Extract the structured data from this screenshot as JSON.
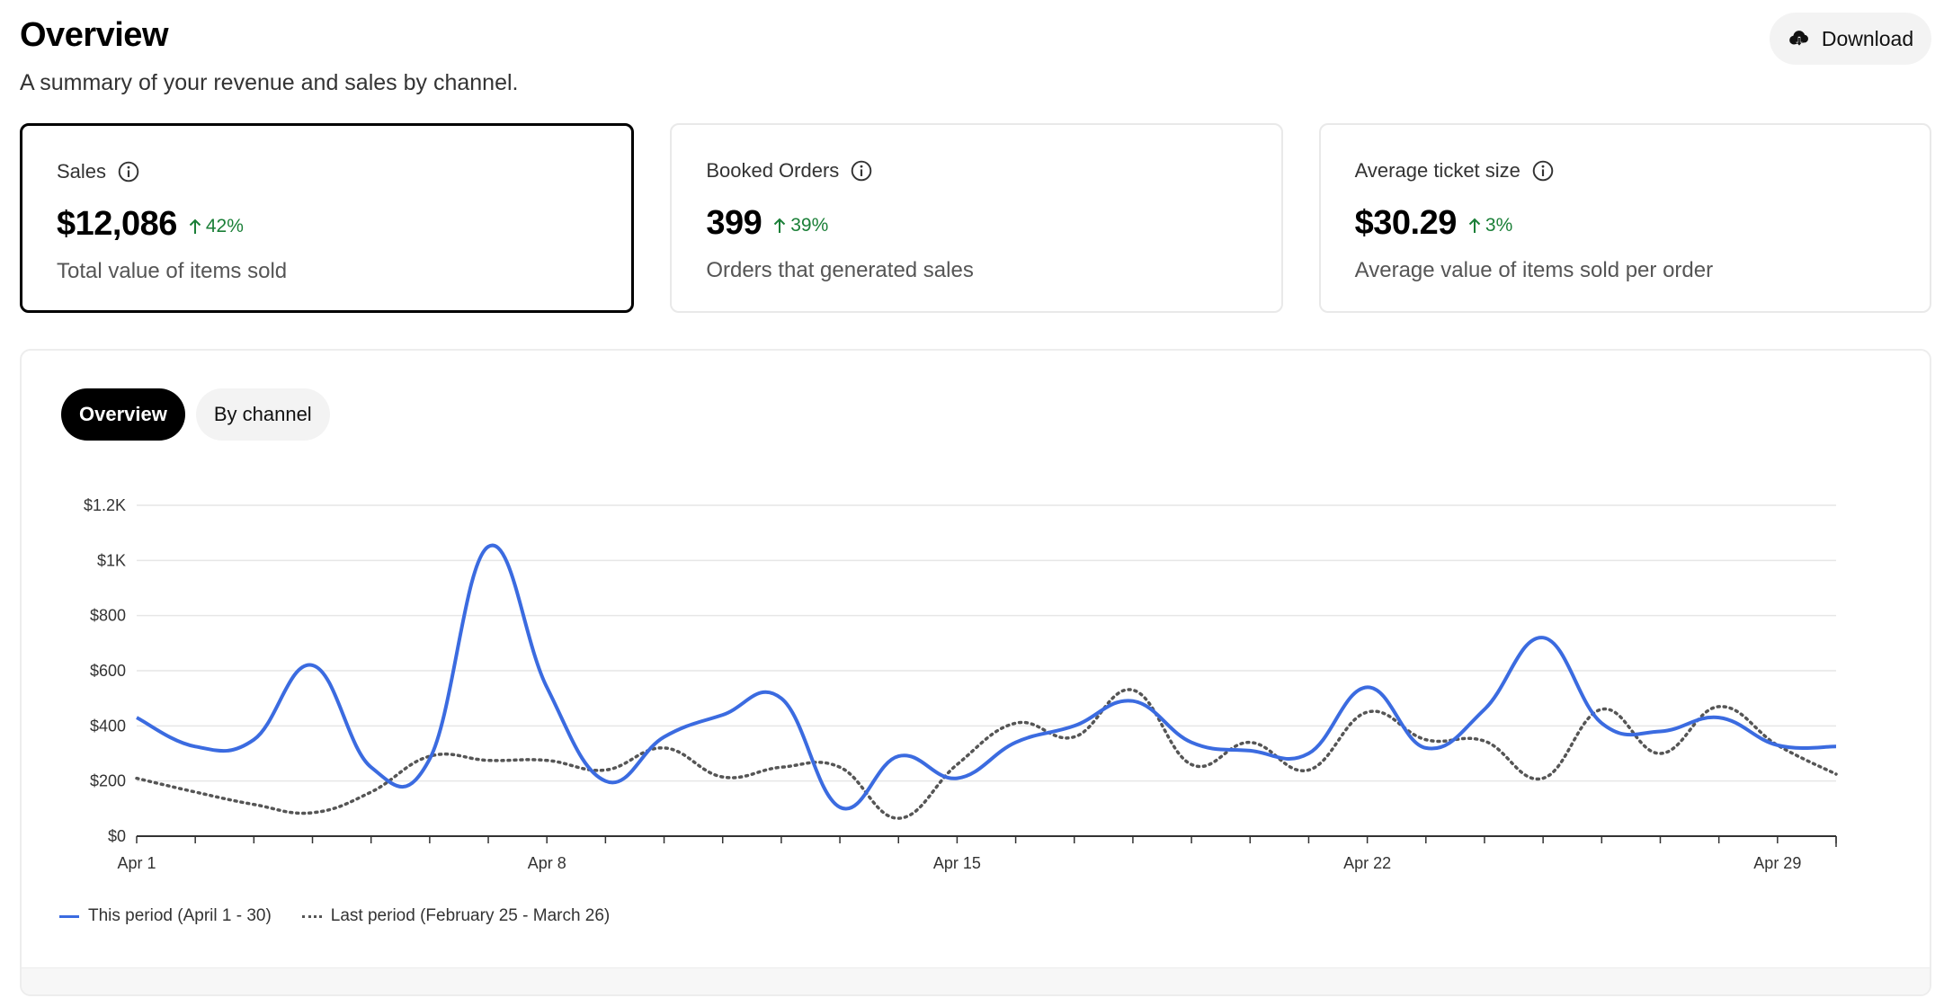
{
  "header": {
    "title": "Overview",
    "subtitle": "A summary of your revenue and sales by channel.",
    "download_label": "Download"
  },
  "cards": [
    {
      "label": "Sales",
      "value": "$12,086",
      "delta": "42%",
      "desc": "Total value of items sold",
      "selected": true
    },
    {
      "label": "Booked Orders",
      "value": "399",
      "delta": "39%",
      "desc": "Orders that generated sales",
      "selected": false
    },
    {
      "label": "Average ticket size",
      "value": "$30.29",
      "delta": "3%",
      "desc": "Average value of items sold per order",
      "selected": false
    }
  ],
  "tabs": [
    {
      "label": "Overview",
      "active": true
    },
    {
      "label": "By channel",
      "active": false
    }
  ],
  "colors": {
    "this_period": "#3b6be0",
    "last_period": "#555555",
    "delta_positive": "#1a7f37"
  },
  "chart_data": {
    "type": "line",
    "x": [
      "Apr 1",
      "Apr 2",
      "Apr 3",
      "Apr 4",
      "Apr 5",
      "Apr 6",
      "Apr 7",
      "Apr 8",
      "Apr 9",
      "Apr 10",
      "Apr 11",
      "Apr 12",
      "Apr 13",
      "Apr 14",
      "Apr 15",
      "Apr 16",
      "Apr 17",
      "Apr 18",
      "Apr 19",
      "Apr 20",
      "Apr 21",
      "Apr 22",
      "Apr 23",
      "Apr 24",
      "Apr 25",
      "Apr 26",
      "Apr 27",
      "Apr 28",
      "Apr 29",
      "Apr 30"
    ],
    "x_tick_labels": [
      "Apr 1",
      "Apr 8",
      "Apr 15",
      "Apr 22",
      "Apr 29"
    ],
    "y_tick_labels": [
      "$0",
      "$200",
      "$400",
      "$600",
      "$800",
      "$1K",
      "$1.2K"
    ],
    "ylim": [
      0,
      1200
    ],
    "grid": "horizontal",
    "legend_position": "bottom-left",
    "series": [
      {
        "name": "This period (April 1 - 30)",
        "style": "solid",
        "values": [
          430,
          325,
          350,
          620,
          250,
          280,
          1050,
          540,
          200,
          360,
          440,
          500,
          105,
          290,
          210,
          340,
          400,
          490,
          340,
          310,
          300,
          540,
          320,
          460,
          720,
          410,
          380,
          430,
          330,
          325
        ]
      },
      {
        "name": "Last period (February 25 - March 26)",
        "style": "dotted",
        "values": [
          210,
          160,
          115,
          85,
          160,
          290,
          275,
          275,
          240,
          320,
          215,
          250,
          250,
          65,
          260,
          410,
          360,
          530,
          260,
          340,
          240,
          450,
          350,
          345,
          210,
          460,
          300,
          470,
          330,
          225
        ]
      }
    ]
  }
}
